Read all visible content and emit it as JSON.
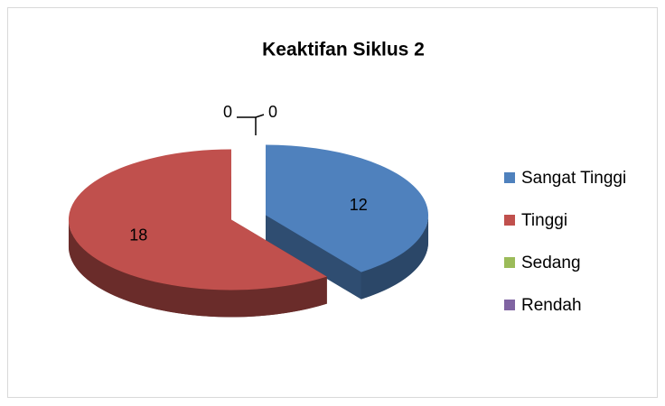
{
  "chart_data": {
    "type": "pie",
    "title": "Keaktifan Siklus 2",
    "categories": [
      "Sangat Tinggi",
      "Tinggi",
      "Sedang",
      "Rendah"
    ],
    "values": [
      12,
      18,
      0,
      0
    ],
    "colors": [
      "#4f81bd",
      "#c0504d",
      "#9bbb59",
      "#8064a2"
    ],
    "legend": "right"
  }
}
